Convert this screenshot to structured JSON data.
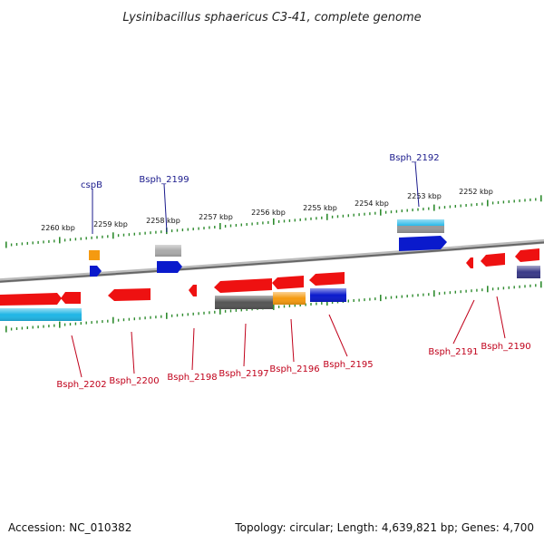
{
  "title": "Lysinibacillus sphaericus C3-41, complete genome",
  "footer": {
    "accession": "Accession: NC_010382",
    "topology": "Topology: circular; Length: 4,639,821 bp; Genes: 4,700"
  },
  "scale_labels": [
    "2260 kbp",
    "2259 kbp",
    "2258 kbp",
    "2257 kbp",
    "2256 kbp",
    "2255 kbp",
    "2254 kbp",
    "2253 kbp",
    "2252 kbp"
  ],
  "top_labels": [
    "cspB",
    "Bsph_2199",
    "Bsph_2192"
  ],
  "bottom_labels": [
    "Bsph_2202",
    "Bsph_2200",
    "Bsph_2198",
    "Bsph_2197",
    "Bsph_2196",
    "Bsph_2195",
    "Bsph_2191",
    "Bsph_2190"
  ],
  "colors": {
    "red": "#ee1111",
    "blue": "#0a1acc",
    "orange": "#f59a10",
    "gray": "#aaaaaa",
    "darkgray": "#555555",
    "cyan": "#20b6e6",
    "navy": "#3a3a88",
    "tick": "#2e8b2e",
    "genome": "#888888"
  }
}
